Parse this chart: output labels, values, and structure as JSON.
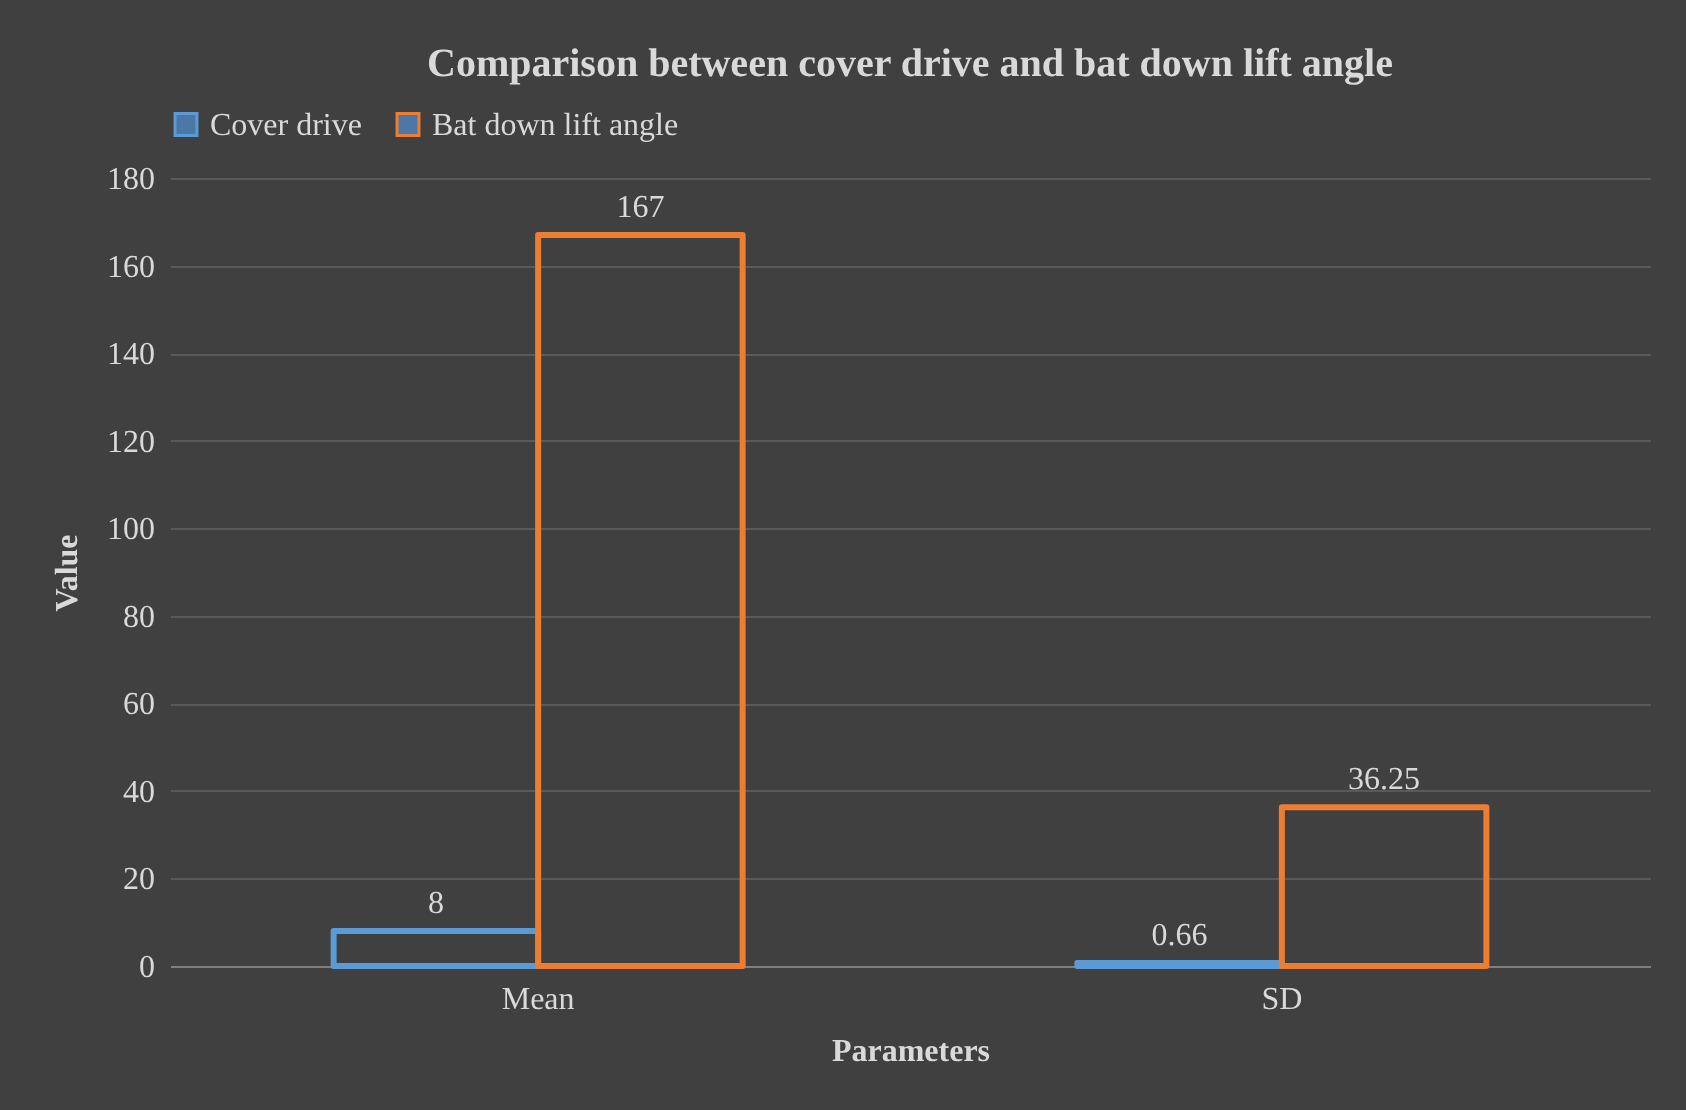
{
  "chart_data": {
    "type": "bar",
    "title": "Comparison between cover drive and bat down lift angle",
    "xlabel": "Parameters",
    "ylabel": "Value",
    "categories": [
      "Mean",
      "SD"
    ],
    "series": [
      {
        "name": "Cover drive",
        "color": "#5b9bd5",
        "values": [
          8,
          0.66
        ]
      },
      {
        "name": "Bat down lift angle",
        "color": "#ed7d31",
        "values": [
          167,
          36.25
        ]
      }
    ],
    "ylim": [
      0,
      180
    ],
    "yticks": [
      0,
      20,
      40,
      60,
      80,
      100,
      120,
      140,
      160,
      180
    ],
    "grid": "y",
    "legend": "top",
    "data_labels": true
  }
}
